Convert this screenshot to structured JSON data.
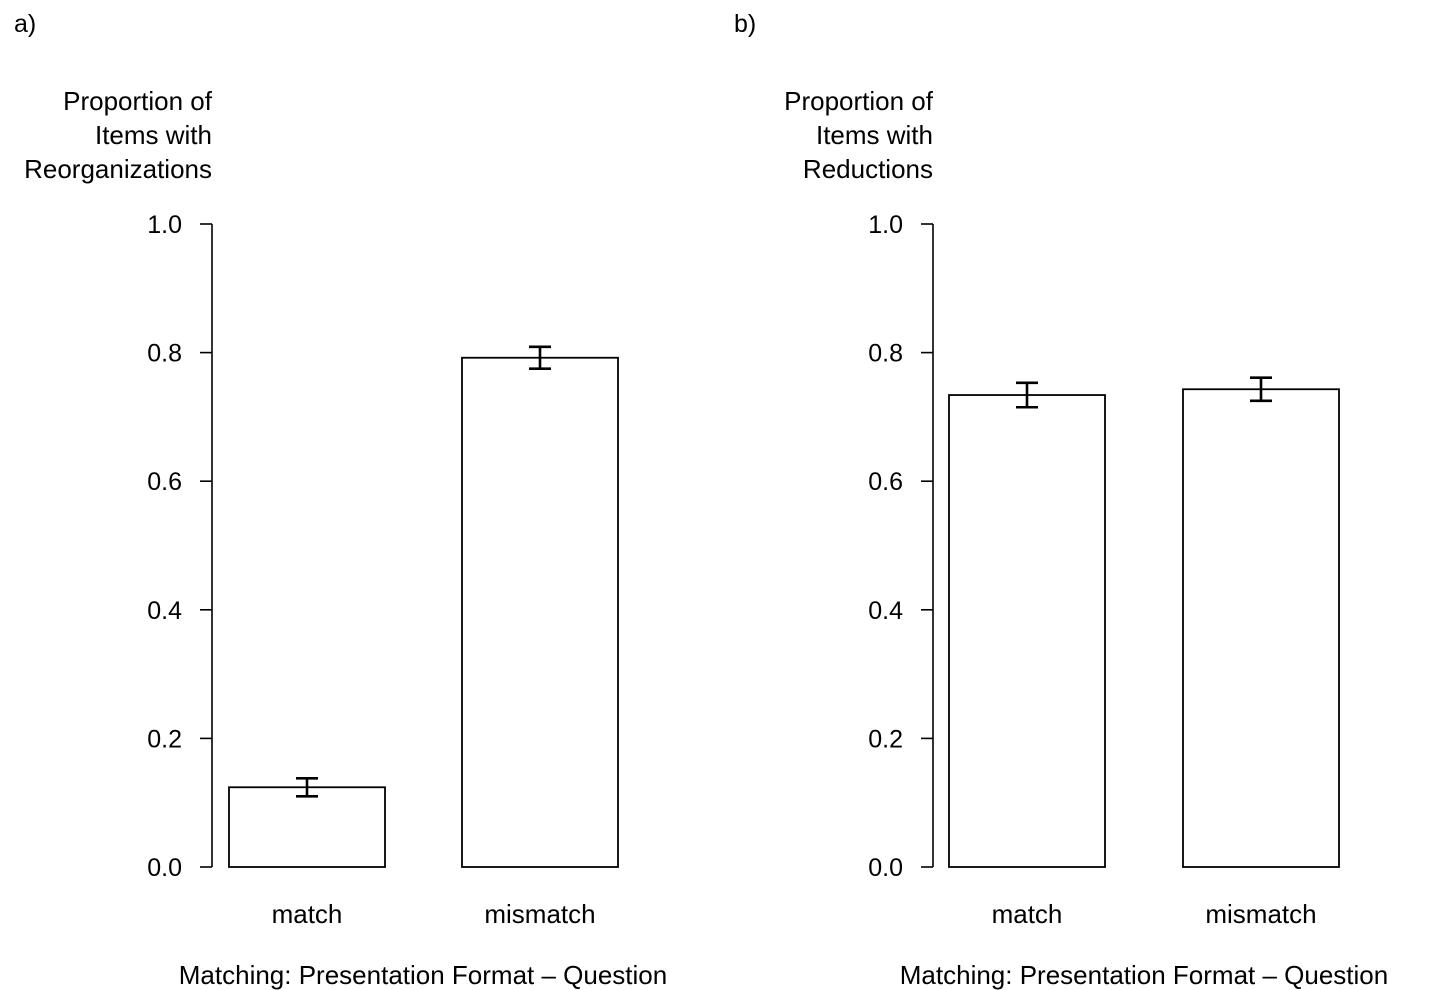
{
  "chart_data": [
    {
      "type": "bar",
      "panel_label": "a)",
      "ylabel_lines": [
        "Proportion of",
        "Items with",
        "Reorganizations"
      ],
      "xlabel": "Matching: Presentation Format – Question",
      "categories": [
        "match",
        "mismatch"
      ],
      "values": [
        0.124,
        0.792
      ],
      "error": [
        0.014,
        0.017
      ],
      "ylim": [
        0,
        1
      ],
      "yticks": [
        0.0,
        0.2,
        0.4,
        0.6,
        0.8,
        1.0
      ],
      "ytick_labels": [
        "0.0",
        "0.2",
        "0.4",
        "0.6",
        "0.8",
        "1.0"
      ],
      "grid": false,
      "bar_fill": "#ffffff",
      "bar_stroke": "#000000"
    },
    {
      "type": "bar",
      "panel_label": "b)",
      "ylabel_lines": [
        "Proportion of",
        "Items with",
        "Reductions"
      ],
      "xlabel": "Matching: Presentation Format – Question",
      "categories": [
        "match",
        "mismatch"
      ],
      "values": [
        0.734,
        0.743
      ],
      "error": [
        0.019,
        0.018
      ],
      "ylim": [
        0,
        1
      ],
      "yticks": [
        0.0,
        0.2,
        0.4,
        0.6,
        0.8,
        1.0
      ],
      "ytick_labels": [
        "0.0",
        "0.2",
        "0.4",
        "0.6",
        "0.8",
        "1.0"
      ],
      "grid": false,
      "bar_fill": "#ffffff",
      "bar_stroke": "#000000"
    }
  ]
}
